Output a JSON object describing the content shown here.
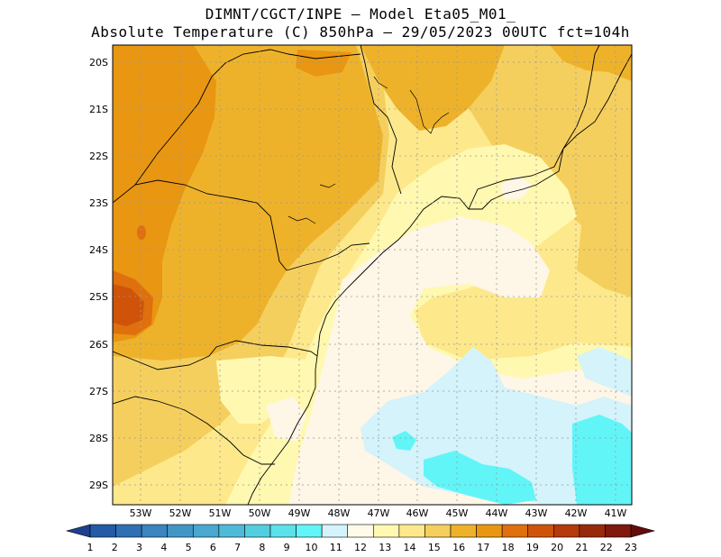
{
  "header": {
    "line1": "DIMNT/CGCT/INPE —  Model Eta05_M01_",
    "line2": "Absolute Temperature (C) 850hPa —  29/05/2023 00UTC fct=104h"
  },
  "axes": {
    "lat_labels": [
      "20S",
      "21S",
      "22S",
      "23S",
      "24S",
      "25S",
      "26S",
      "27S",
      "28S",
      "29S"
    ],
    "lon_labels": [
      "53W",
      "52W",
      "51W",
      "50W",
      "49W",
      "48W",
      "47W",
      "46W",
      "45W",
      "44W",
      "43W",
      "42W",
      "41W"
    ]
  },
  "colorbar": {
    "labels": [
      "1",
      "2",
      "3",
      "4",
      "5",
      "6",
      "7",
      "8",
      "9",
      "10",
      "11",
      "12",
      "13",
      "14",
      "15",
      "16",
      "17",
      "18",
      "19",
      "20",
      "21",
      "22",
      "23"
    ],
    "colors": [
      "#1f3f8f",
      "#245aa6",
      "#2f70b4",
      "#3a84c0",
      "#4296c6",
      "#48a8d0",
      "#4fbad8",
      "#53cde0",
      "#5ae1ea",
      "#62f5f8",
      "#d4f3fa",
      "#fffbe8",
      "#fff8b0",
      "#fde98c",
      "#f5cf5e",
      "#eeb22a",
      "#e99612",
      "#df700d",
      "#cf540a",
      "#b53a0b",
      "#982a0c",
      "#7f1a0d",
      "#640b0f"
    ]
  },
  "map": {
    "field_colors": {
      "t11": "#d4f3fa",
      "t10": "#62f5f8",
      "t12": "#fef6e6",
      "t13": "#fff8b0",
      "t14": "#fde98c",
      "t15": "#f5cf5e",
      "t16": "#eeb22a",
      "t17": "#e99612",
      "t18": "#df700d",
      "t19": "#cf540a"
    }
  }
}
